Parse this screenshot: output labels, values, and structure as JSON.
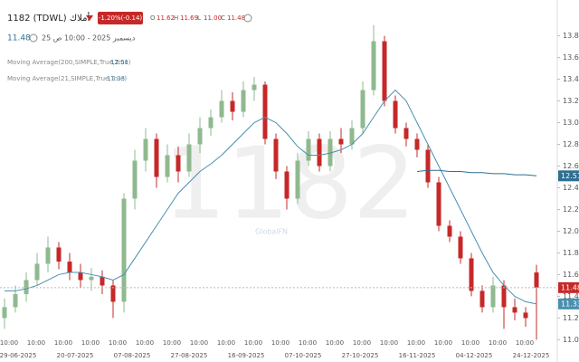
{
  "header": {
    "symbol": "1182 (TDWL) أملاك",
    "change": "-1.20%(-0.14)",
    "ohlc": [
      {
        "key": "O",
        "value": "11.62"
      },
      {
        "key": "H",
        "value": "11.69"
      },
      {
        "key": "L",
        "value": "11.00"
      },
      {
        "key": "C",
        "value": "11.48"
      }
    ],
    "price": "11.48",
    "datetime": "25 ديسمبر 2025 - 10:00 ص"
  },
  "watermark": "1182",
  "brand": "GlobalFN",
  "chart_data": {
    "type": "candlestick",
    "up_color": "#8fb98f",
    "down_color": "#c62828",
    "ylim": [
      10.92,
      14.13
    ],
    "yticks": [
      {
        "value": 11.0,
        "label": "11.00"
      },
      {
        "value": 11.2,
        "label": "11.20"
      },
      {
        "value": 11.4,
        "label": "11.40"
      },
      {
        "value": 11.6,
        "label": "11.60"
      },
      {
        "value": 11.8,
        "label": "11.80"
      },
      {
        "value": 12.0,
        "label": "12.00"
      },
      {
        "value": 12.2,
        "label": "12.20"
      },
      {
        "value": 12.4,
        "label": "12.40"
      },
      {
        "value": 12.6,
        "label": "12.60"
      },
      {
        "value": 12.8,
        "label": "12.80"
      },
      {
        "value": 13.0,
        "label": "13.00"
      },
      {
        "value": 13.2,
        "label": "13.20"
      },
      {
        "value": 13.4,
        "label": "13.40"
      },
      {
        "value": 13.6,
        "label": "13.60"
      },
      {
        "value": 13.8,
        "label": "13.80"
      }
    ],
    "time_labels": [
      "10:00",
      "10:00",
      "10:00",
      "10:00",
      "10:00",
      "10:00",
      "10:00",
      "10:00",
      "10:00",
      "10:00",
      "10:00",
      "10:00",
      "10:00",
      "10:00",
      "10:00",
      "10:00",
      "10:00",
      "10:00",
      "10:00",
      "10:00"
    ],
    "date_labels": [
      "29-06-2025",
      "20-07-2025",
      "07-08-2025",
      "27-08-2025",
      "16-09-2025",
      "07-10-2025",
      "27-10-2025",
      "16-11-2025",
      "04-12-2025",
      "24-12-2025"
    ],
    "candles": [
      [
        11.2,
        11.38,
        11.1,
        11.3
      ],
      [
        11.3,
        11.5,
        11.25,
        11.42
      ],
      [
        11.42,
        11.62,
        11.35,
        11.55
      ],
      [
        11.55,
        11.8,
        11.5,
        11.7
      ],
      [
        11.7,
        11.95,
        11.62,
        11.85
      ],
      [
        11.85,
        11.9,
        11.65,
        11.72
      ],
      [
        11.72,
        11.8,
        11.55,
        11.62
      ],
      [
        11.62,
        11.7,
        11.48,
        11.55
      ],
      [
        11.55,
        11.66,
        11.45,
        11.58
      ],
      [
        11.58,
        11.64,
        11.42,
        11.5
      ],
      [
        11.5,
        11.55,
        11.2,
        11.35
      ],
      [
        11.35,
        12.35,
        11.25,
        12.3
      ],
      [
        12.3,
        12.75,
        12.2,
        12.65
      ],
      [
        12.65,
        12.95,
        12.55,
        12.85
      ],
      [
        12.85,
        12.9,
        12.4,
        12.5
      ],
      [
        12.5,
        12.8,
        12.45,
        12.7
      ],
      [
        12.7,
        12.78,
        12.45,
        12.55
      ],
      [
        12.55,
        12.9,
        12.5,
        12.8
      ],
      [
        12.8,
        13.05,
        12.72,
        12.95
      ],
      [
        12.95,
        13.12,
        12.88,
        13.05
      ],
      [
        13.05,
        13.3,
        13.0,
        13.2
      ],
      [
        13.2,
        13.28,
        13.02,
        13.1
      ],
      [
        13.1,
        13.38,
        13.05,
        13.3
      ],
      [
        13.3,
        13.42,
        13.2,
        13.35
      ],
      [
        13.35,
        13.38,
        12.8,
        12.85
      ],
      [
        12.85,
        12.9,
        12.48,
        12.55
      ],
      [
        12.55,
        12.6,
        12.2,
        12.3
      ],
      [
        12.3,
        12.72,
        12.25,
        12.65
      ],
      [
        12.65,
        12.92,
        12.6,
        12.85
      ],
      [
        12.85,
        12.9,
        12.55,
        12.6
      ],
      [
        12.6,
        12.92,
        12.55,
        12.85
      ],
      [
        12.85,
        12.95,
        12.72,
        12.8
      ],
      [
        12.8,
        13.02,
        12.75,
        12.95
      ],
      [
        12.95,
        13.38,
        12.9,
        13.3
      ],
      [
        13.3,
        13.9,
        13.25,
        13.75
      ],
      [
        13.75,
        13.8,
        13.15,
        13.2
      ],
      [
        13.2,
        13.25,
        12.9,
        12.95
      ],
      [
        12.95,
        13.0,
        12.78,
        12.85
      ],
      [
        12.85,
        12.9,
        12.68,
        12.75
      ],
      [
        12.75,
        12.8,
        12.4,
        12.45
      ],
      [
        12.45,
        12.5,
        12.0,
        12.05
      ],
      [
        12.05,
        12.1,
        11.9,
        11.95
      ],
      [
        11.95,
        12.0,
        11.7,
        11.75
      ],
      [
        11.75,
        11.8,
        11.4,
        11.45
      ],
      [
        11.45,
        11.5,
        11.25,
        11.3
      ],
      [
        11.3,
        11.58,
        11.25,
        11.5
      ],
      [
        11.5,
        11.55,
        11.1,
        11.3
      ],
      [
        11.3,
        11.38,
        11.18,
        11.25
      ],
      [
        11.25,
        11.3,
        11.12,
        11.2
      ],
      [
        11.62,
        11.69,
        11.0,
        11.48
      ]
    ],
    "series": [
      {
        "name": "Moving Average(21,SIMPLE,True,True)",
        "last": 11.33,
        "color": "#4a8fb0",
        "values": [
          11.45,
          11.45,
          11.47,
          11.5,
          11.55,
          11.6,
          11.62,
          11.62,
          11.6,
          11.58,
          11.55,
          11.6,
          11.75,
          11.9,
          12.05,
          12.2,
          12.35,
          12.45,
          12.55,
          12.62,
          12.7,
          12.8,
          12.9,
          13.0,
          13.05,
          13.0,
          12.9,
          12.78,
          12.7,
          12.7,
          12.72,
          12.75,
          12.8,
          12.9,
          13.05,
          13.2,
          13.3,
          13.2,
          13.0,
          12.8,
          12.6,
          12.4,
          12.2,
          12.0,
          11.8,
          11.62,
          11.5,
          11.4,
          11.35,
          11.33
        ]
      },
      {
        "name": "Moving Average(200,SIMPLE,True,True)",
        "last": 12.51,
        "color": "#2f6f8f",
        "values": [
          null,
          null,
          null,
          null,
          null,
          null,
          null,
          null,
          null,
          null,
          null,
          null,
          null,
          null,
          null,
          null,
          null,
          null,
          null,
          null,
          null,
          null,
          null,
          null,
          null,
          null,
          null,
          null,
          null,
          null,
          null,
          null,
          null,
          null,
          null,
          null,
          null,
          null,
          12.55,
          12.56,
          12.56,
          12.55,
          12.55,
          12.54,
          12.54,
          12.53,
          12.53,
          12.52,
          12.52,
          12.51
        ]
      }
    ],
    "last_price": {
      "value": 11.48,
      "color": "#c62828"
    }
  }
}
